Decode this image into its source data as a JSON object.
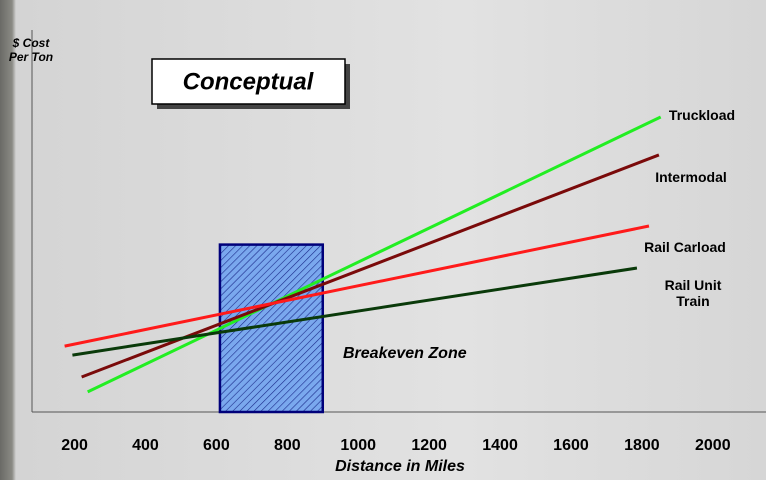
{
  "chart_data": {
    "type": "line",
    "title": "Conceptual",
    "y_label": "$ Cost Per Ton",
    "x_label": "Distance in Miles",
    "annotation": "Breakeven Zone",
    "breakeven_zone": {
      "xlim": [
        610,
        900
      ],
      "ytop": 45
    },
    "xlim": [
      80,
      2150
    ],
    "ylim": [
      0,
      100
    ],
    "xticks": [
      200,
      400,
      600,
      800,
      1000,
      1200,
      1400,
      1600,
      1800,
      2000
    ],
    "series": [
      {
        "name": "Truckload",
        "color": "#22ee22",
        "x": [
          237,
          1853
        ],
        "values": [
          5.4,
          79.3
        ]
      },
      {
        "name": "Intermodal",
        "color": "#7a0a0a",
        "x": [
          220,
          1848
        ],
        "values": [
          9.4,
          69.1
        ]
      },
      {
        "name": "Rail Carload",
        "color": "#ff1a1a",
        "x": [
          172,
          1820
        ],
        "values": [
          17.7,
          50
        ]
      },
      {
        "name": "Rail Unit Train",
        "color": "#0a3a0a",
        "x": [
          194,
          1786
        ],
        "values": [
          15.3,
          38.7
        ]
      }
    ]
  }
}
